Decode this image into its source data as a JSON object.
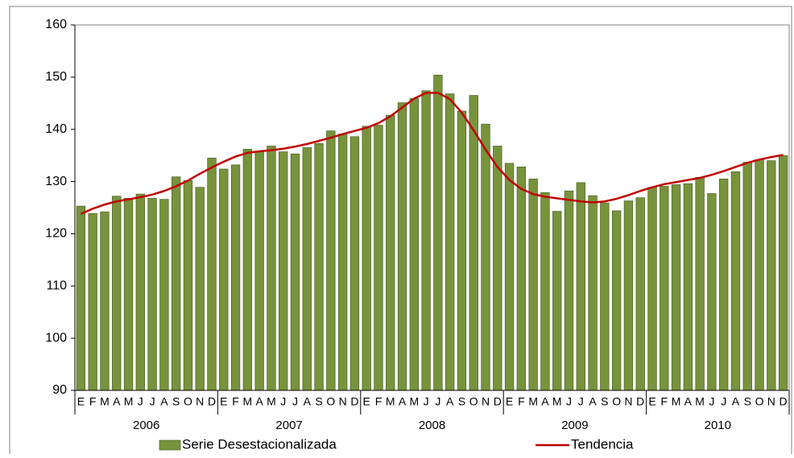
{
  "chart_data": {
    "type": "bar_line",
    "categories": [
      "E",
      "F",
      "M",
      "A",
      "M",
      "J",
      "J",
      "A",
      "S",
      "O",
      "N",
      "D",
      "E",
      "F",
      "M",
      "A",
      "M",
      "J",
      "J",
      "A",
      "S",
      "O",
      "N",
      "D",
      "E",
      "F",
      "M",
      "A",
      "M",
      "J",
      "J",
      "A",
      "S",
      "O",
      "N",
      "D",
      "E",
      "F",
      "M",
      "A",
      "M",
      "J",
      "J",
      "A",
      "S",
      "O",
      "N",
      "D",
      "E",
      "F",
      "M",
      "A",
      "M",
      "J",
      "J",
      "A",
      "S",
      "O",
      "N",
      "D"
    ],
    "year_labels": [
      "2006",
      "2007",
      "2008",
      "2009",
      "2010"
    ],
    "series": [
      {
        "name": "Serie Desestacionalizada",
        "type": "bar",
        "color": "#77933c",
        "values": [
          125.3,
          123.9,
          124.2,
          127.2,
          126.8,
          127.6,
          126.8,
          126.6,
          130.9,
          130.2,
          128.9,
          134.5,
          132.4,
          133.2,
          136.2,
          135.8,
          136.8,
          135.7,
          135.3,
          136.5,
          137.3,
          139.7,
          139.1,
          138.6,
          140.6,
          140.8,
          142.7,
          145.1,
          145.9,
          147.4,
          150.4,
          146.8,
          143.5,
          146.5,
          141.0,
          136.8,
          133.5,
          132.8,
          130.5,
          127.9,
          124.3,
          128.2,
          129.8,
          127.3,
          125.9,
          124.4,
          126.3,
          126.9,
          128.9,
          129.1,
          129.4,
          129.6,
          130.8,
          127.7,
          130.5,
          131.9,
          133.7,
          134.2,
          134.0,
          135.0
        ]
      },
      {
        "name": "Tendencia",
        "type": "line",
        "color": "#c00000",
        "values": [
          123.8,
          124.8,
          125.6,
          126.2,
          126.6,
          127.0,
          127.5,
          128.2,
          129.1,
          130.2,
          131.5,
          132.7,
          133.8,
          134.8,
          135.5,
          135.8,
          136.0,
          136.3,
          136.7,
          137.2,
          137.8,
          138.4,
          139.1,
          139.7,
          140.3,
          141.2,
          142.5,
          144.2,
          145.9,
          147.0,
          147.0,
          145.8,
          143.2,
          139.8,
          136.1,
          132.8,
          130.3,
          128.6,
          127.6,
          127.1,
          126.8,
          126.5,
          126.2,
          126.0,
          126.2,
          126.7,
          127.4,
          128.2,
          128.9,
          129.5,
          129.9,
          130.3,
          130.7,
          131.3,
          132.0,
          132.8,
          133.6,
          134.2,
          134.7,
          135.1
        ]
      }
    ],
    "ylim": [
      90,
      160
    ],
    "yticks": [
      90,
      100,
      110,
      120,
      130,
      140,
      150,
      160
    ],
    "legend": "bottom"
  }
}
